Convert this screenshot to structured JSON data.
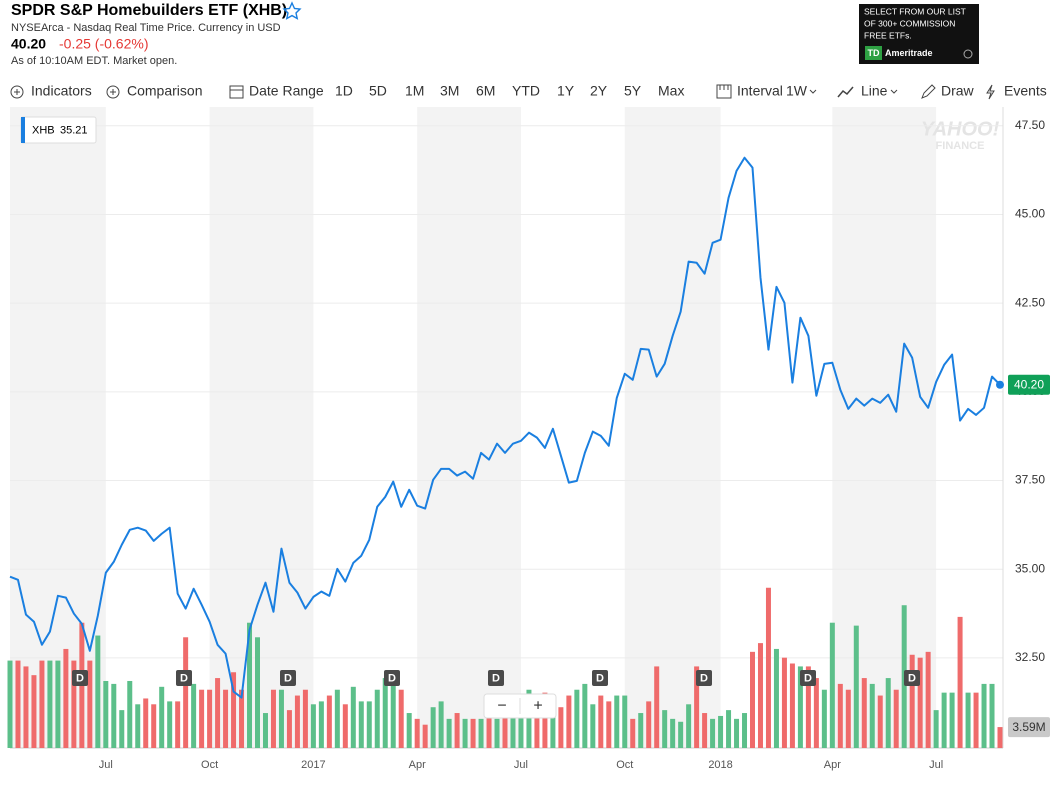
{
  "header": {
    "title": "SPDR S&P Homebuilders ETF (XHB)",
    "subtitle": "NYSEArca - Nasdaq Real Time Price. Currency in USD",
    "price": "40.20",
    "change": "-0.25 (-0.62%)",
    "status": "As of 10:10AM EDT. Market open."
  },
  "ad": {
    "lines": [
      "SELECT FROM OUR LIST",
      "OF 300+ COMMISSION",
      "FREE ETFs."
    ],
    "logo": "TD",
    "brand": "Ameritrade"
  },
  "toolbar": [
    "Indicators",
    "Comparison",
    "Date Range",
    "1D",
    "5D",
    "1M",
    "3M",
    "6M",
    "YTD",
    "1Y",
    "2Y",
    "5Y",
    "Max",
    "Interval",
    "1W",
    "Line",
    "Draw",
    "Events"
  ],
  "watermark": [
    "YAHOO!",
    "FINANCE"
  ],
  "zoom": [
    "−",
    "+"
  ],
  "chart_data": {
    "type": "line",
    "categories": [
      null,
      null,
      null,
      null,
      null,
      null,
      null,
      null,
      null,
      null,
      null,
      null,
      "Jul",
      null,
      null,
      null,
      null,
      null,
      null,
      null,
      null,
      null,
      null,
      null,
      null,
      "Oct",
      null,
      null,
      null,
      null,
      null,
      null,
      null,
      null,
      null,
      null,
      null,
      null,
      "2017",
      null,
      null,
      null,
      null,
      null,
      null,
      null,
      null,
      null,
      null,
      null,
      null,
      "Apr",
      null,
      null,
      null,
      null,
      null,
      null,
      null,
      null,
      null,
      null,
      null,
      null,
      "Jul",
      null,
      null,
      null,
      null,
      null,
      null,
      null,
      null,
      null,
      null,
      null,
      null,
      "Oct",
      null,
      null,
      null,
      null,
      null,
      null,
      null,
      null,
      null,
      null,
      null,
      "2018",
      null,
      null,
      null,
      null,
      null,
      null,
      null,
      null,
      null,
      null,
      null,
      null,
      null,
      "Apr",
      null,
      null,
      null,
      null,
      null,
      null,
      null,
      null,
      null,
      null,
      null,
      null,
      "Jul",
      null,
      null,
      null,
      null,
      null,
      null,
      null,
      null
    ],
    "series": [
      {
        "name": "XHB",
        "color": "#1a7fe0",
        "values": [
          34.79,
          34.7,
          33.72,
          33.52,
          32.87,
          33.24,
          34.25,
          34.2,
          33.75,
          33.46,
          32.7,
          33.69,
          34.9,
          35.21,
          35.69,
          36.11,
          36.17,
          36.09,
          35.8,
          36.0,
          36.17,
          34.31,
          33.89,
          34.45,
          34.0,
          33.52,
          32.87,
          32.62,
          31.55,
          31.38,
          33.29,
          34.0,
          34.62,
          33.8,
          35.58,
          34.62,
          34.34,
          33.89,
          34.22,
          34.37,
          34.25,
          35.01,
          34.65,
          35.18,
          35.38,
          35.83,
          36.76,
          37.04,
          37.47,
          36.76,
          37.24,
          36.79,
          36.71,
          37.52,
          37.83,
          37.83,
          37.64,
          37.75,
          37.55,
          38.28,
          38.09,
          38.54,
          38.28,
          38.54,
          38.62,
          38.85,
          38.71,
          38.42,
          38.96,
          38.2,
          37.44,
          37.49,
          38.28,
          38.88,
          38.76,
          38.48,
          39.83,
          40.51,
          40.34,
          41.21,
          41.19,
          40.43,
          40.79,
          41.58,
          42.26,
          43.67,
          43.64,
          43.33,
          44.2,
          44.29,
          45.47,
          46.23,
          46.6,
          46.32,
          43.22,
          41.19,
          42.96,
          42.51,
          40.26,
          42.09,
          41.58,
          39.89,
          40.79,
          40.82,
          40.06,
          39.52,
          39.81,
          39.61,
          39.81,
          39.69,
          39.92,
          39.44,
          41.36,
          40.96,
          39.86,
          39.55,
          40.28,
          40.76,
          41.05,
          39.19,
          39.52,
          39.35,
          39.55,
          40.43,
          40.2
        ]
      }
    ],
    "legend_value": 35.21,
    "price_tag": {
      "value": 40.2,
      "label": "40.20",
      "color": "#0fa058"
    },
    "volume": {
      "axis": "y2",
      "up_color": "#5cbf8a",
      "down_color": "#ef6b6b",
      "values": [
        15,
        15,
        14,
        12.5,
        15,
        15,
        15,
        17,
        15,
        21.5,
        15,
        19.3,
        11.5,
        11,
        6.5,
        11.5,
        7.5,
        8.5,
        7.5,
        10.5,
        8,
        8,
        19,
        11,
        10,
        10,
        12,
        10,
        13,
        10,
        21.5,
        19,
        6,
        10,
        10,
        6.5,
        9,
        10,
        7.5,
        8,
        9,
        10,
        7.5,
        10.5,
        8,
        8,
        10,
        12,
        12,
        10,
        6,
        5,
        4,
        7,
        8,
        5,
        6,
        5,
        5,
        5,
        6,
        5,
        6,
        7,
        8.5,
        10,
        7,
        9.5,
        9,
        7,
        9,
        10,
        11,
        7.5,
        9,
        8,
        9,
        9,
        5,
        6,
        8,
        14,
        6.5,
        5,
        4.5,
        7.5,
        14,
        6,
        5,
        5.5,
        6.5,
        5,
        6,
        16.5,
        18,
        27.5,
        17,
        15.5,
        14.5,
        14,
        14,
        12,
        10,
        21.5,
        11,
        10,
        21,
        12,
        11,
        9,
        12,
        10,
        24.5,
        16,
        15.5,
        16.5,
        6.5,
        9.5,
        9.5,
        22.5,
        9.5,
        9.5,
        11,
        11,
        3.59
      ]
    },
    "volume_tag": {
      "value": 3.59,
      "label": "3.59M"
    },
    "dividend_label": "D",
    "ylim": [
      29.96,
      48.03
    ],
    "yticks": [
      {
        "value": 32.5,
        "label": "32.50"
      },
      {
        "value": 35,
        "label": "35.00"
      },
      {
        "value": 37.5,
        "label": "37.50"
      },
      {
        "value": 40,
        "label": "40.00"
      },
      {
        "value": 42.5,
        "label": "42.50"
      },
      {
        "value": 45,
        "label": "45.00"
      },
      {
        "value": 47.5,
        "label": "47.50"
      }
    ],
    "y2lim": [
      0,
      110
    ],
    "grid": true,
    "band_color": "#f3f3f3"
  }
}
